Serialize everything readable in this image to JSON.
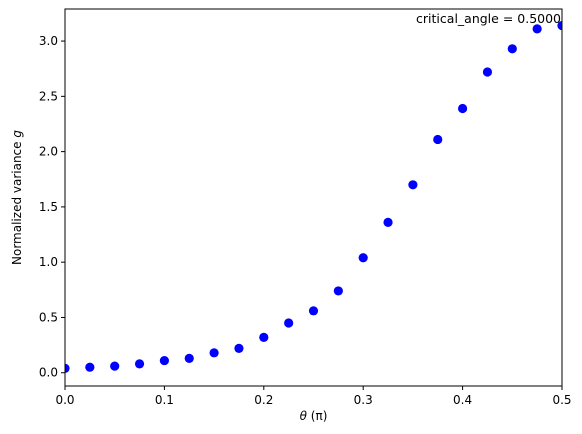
{
  "chart_data": {
    "type": "scatter",
    "title": "",
    "xlabel": "θ (π)",
    "xlabel_parts": {
      "symbol": "θ",
      "unit": "(π)"
    },
    "ylabel": "Normalized variance g",
    "ylabel_parts": {
      "text": "Normalized variance ",
      "symbol": "g"
    },
    "xlim": [
      0,
      0.5
    ],
    "ylim": [
      -0.12,
      3.29
    ],
    "xticks": [
      0.0,
      0.1,
      0.2,
      0.3,
      0.4,
      0.5
    ],
    "xtick_labels": [
      "0.0",
      "0.1",
      "0.2",
      "0.3",
      "0.4",
      "0.5"
    ],
    "yticks": [
      0.0,
      0.5,
      1.0,
      1.5,
      2.0,
      2.5,
      3.0
    ],
    "ytick_labels": [
      "0.0",
      "0.5",
      "1.0",
      "1.5",
      "2.0",
      "2.5",
      "3.0"
    ],
    "grid": false,
    "marker_color": "#0000ff",
    "annotation": "critical_angle = 0.5000",
    "x": [
      0.0,
      0.025,
      0.05,
      0.075,
      0.1,
      0.125,
      0.15,
      0.175,
      0.2,
      0.225,
      0.25,
      0.275,
      0.3,
      0.325,
      0.35,
      0.375,
      0.4,
      0.425,
      0.45,
      0.475,
      0.5
    ],
    "y": [
      0.04,
      0.05,
      0.06,
      0.08,
      0.11,
      0.13,
      0.18,
      0.22,
      0.32,
      0.45,
      0.56,
      0.74,
      1.04,
      1.36,
      1.7,
      2.11,
      2.39,
      2.72,
      2.93,
      3.11,
      3.14
    ]
  }
}
